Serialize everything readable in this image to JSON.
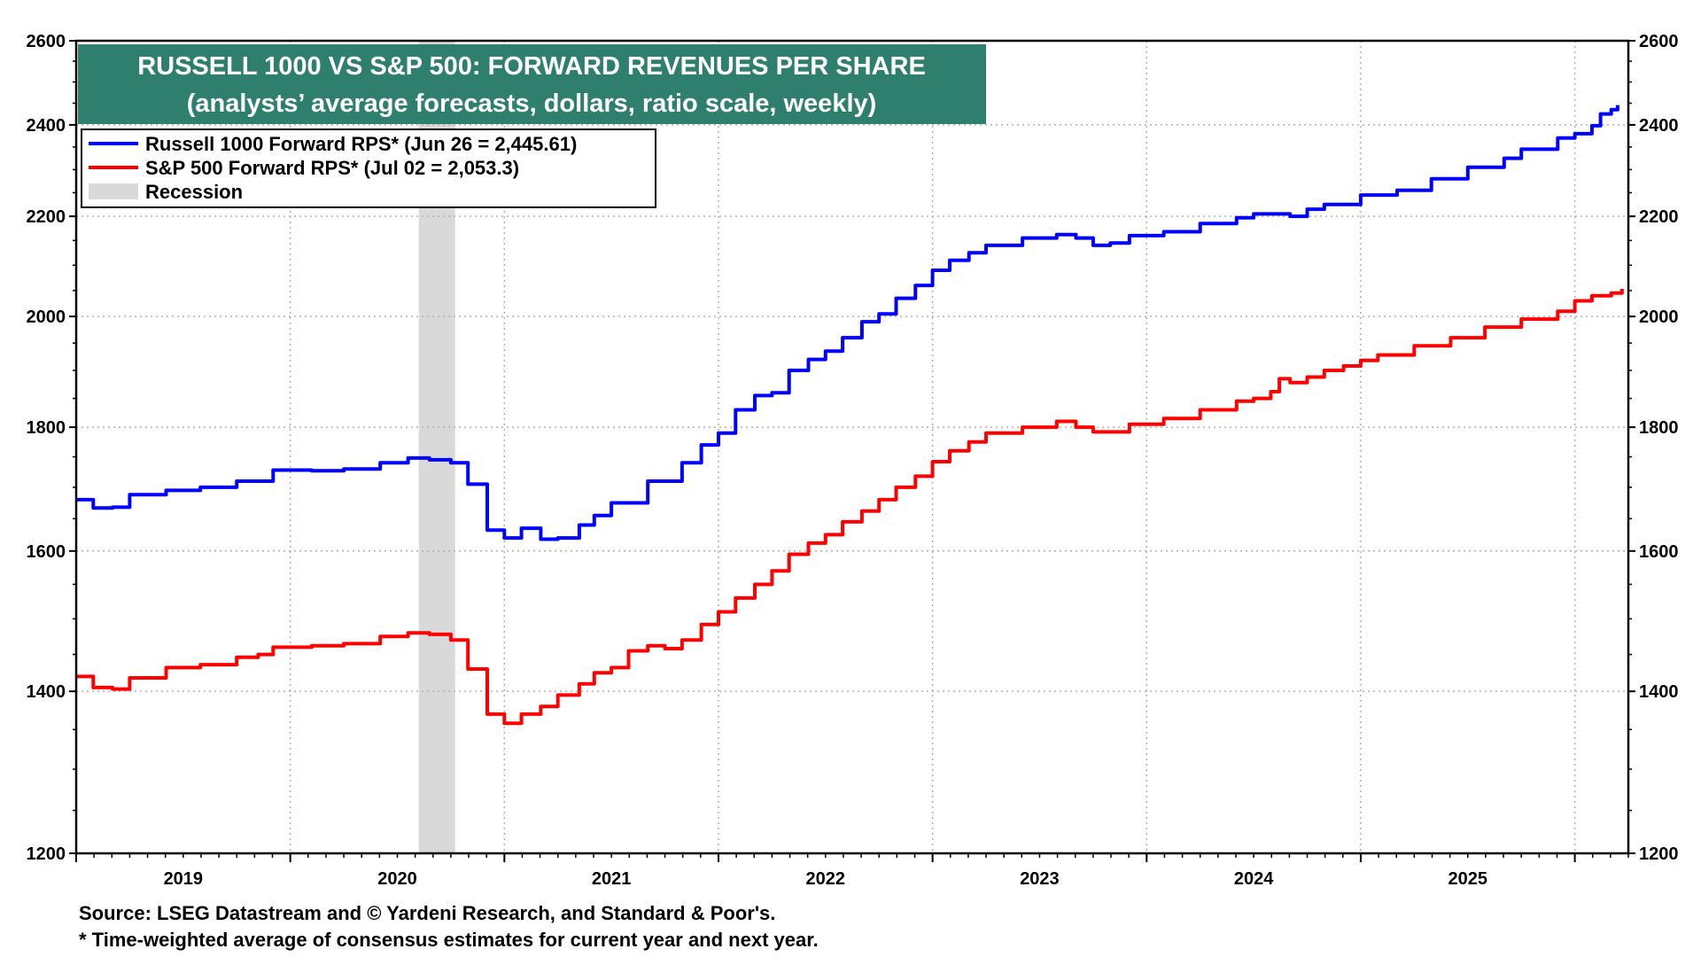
{
  "colors": {
    "title_bg": "#2f7f6f",
    "series_russell": "#0000ff",
    "series_sp": "#ff0000",
    "recession": "#d9d9d9",
    "grid": "#b0b0b0"
  },
  "footnotes": {
    "source": "Source: LSEG Datastream and © Yardeni Research, and Standard & Poor's.",
    "note": "* Time-weighted average of consensus estimates for current year and next year."
  },
  "chart_data": {
    "type": "line",
    "title": "RUSSELL 1000 VS S&P 500: FORWARD REVENUES PER SHARE",
    "subtitle": "(analysts’ average forecasts, dollars, ratio scale, weekly)",
    "xlabel": "",
    "ylabel": "",
    "yscale": "log",
    "ylim": [
      1200,
      2600
    ],
    "xlim": [
      2018.5,
      2025.75
    ],
    "y_ticks": [
      1200,
      1400,
      1600,
      1800,
      2000,
      2200,
      2400,
      2600
    ],
    "y_tick_labels": [
      "1200",
      "1400",
      "1600",
      "1800",
      "2000",
      "2200",
      "2400",
      "2600"
    ],
    "x_tick_labels": [
      "2019",
      "2020",
      "2021",
      "2022",
      "2023",
      "2024",
      "2025"
    ],
    "grid": true,
    "legend_position": "top-left",
    "legend": {
      "russell_label": "Russell 1000 Forward RPS* (Jun 26 = 2,445.61)",
      "sp_label": "S&P 500 Forward RPS* (Jul 02 = 2,053.3)",
      "recession_label": "Recession"
    },
    "recession": {
      "start": 2020.1,
      "end": 2020.27
    },
    "series": [
      {
        "name": "Russell 1000 Forward RPS*",
        "points": [
          [
            2018.5,
            1680
          ],
          [
            2018.58,
            1667
          ],
          [
            2018.67,
            1668
          ],
          [
            2018.75,
            1688
          ],
          [
            2018.92,
            1695
          ],
          [
            2019.08,
            1700
          ],
          [
            2019.25,
            1710
          ],
          [
            2019.35,
            1710
          ],
          [
            2019.42,
            1728
          ],
          [
            2019.6,
            1727
          ],
          [
            2019.75,
            1730
          ],
          [
            2019.92,
            1740
          ],
          [
            2020.05,
            1748
          ],
          [
            2020.15,
            1745
          ],
          [
            2020.25,
            1740
          ],
          [
            2020.33,
            1705
          ],
          [
            2020.42,
            1632
          ],
          [
            2020.5,
            1620
          ],
          [
            2020.58,
            1635
          ],
          [
            2020.67,
            1618
          ],
          [
            2020.75,
            1620
          ],
          [
            2020.85,
            1640
          ],
          [
            2020.92,
            1655
          ],
          [
            2021.0,
            1675
          ],
          [
            2021.17,
            1710
          ],
          [
            2021.33,
            1740
          ],
          [
            2021.42,
            1770
          ],
          [
            2021.5,
            1790
          ],
          [
            2021.58,
            1830
          ],
          [
            2021.67,
            1855
          ],
          [
            2021.75,
            1860
          ],
          [
            2021.83,
            1900
          ],
          [
            2021.92,
            1920
          ],
          [
            2022.0,
            1935
          ],
          [
            2022.08,
            1960
          ],
          [
            2022.17,
            1990
          ],
          [
            2022.25,
            2005
          ],
          [
            2022.33,
            2035
          ],
          [
            2022.42,
            2060
          ],
          [
            2022.5,
            2090
          ],
          [
            2022.58,
            2110
          ],
          [
            2022.67,
            2125
          ],
          [
            2022.75,
            2140
          ],
          [
            2022.92,
            2155
          ],
          [
            2023.08,
            2162
          ],
          [
            2023.17,
            2155
          ],
          [
            2023.25,
            2140
          ],
          [
            2023.33,
            2145
          ],
          [
            2023.42,
            2160
          ],
          [
            2023.58,
            2168
          ],
          [
            2023.75,
            2185
          ],
          [
            2023.92,
            2197
          ],
          [
            2024.0,
            2205
          ],
          [
            2024.17,
            2200
          ],
          [
            2024.25,
            2215
          ],
          [
            2024.33,
            2225
          ],
          [
            2024.5,
            2245
          ],
          [
            2024.67,
            2255
          ],
          [
            2024.83,
            2280
          ],
          [
            2025.0,
            2305
          ],
          [
            2025.17,
            2325
          ],
          [
            2025.25,
            2345
          ],
          [
            2025.42,
            2370
          ],
          [
            2025.5,
            2380
          ],
          [
            2025.58,
            2398
          ],
          [
            2025.62,
            2425
          ],
          [
            2025.67,
            2435
          ],
          [
            2025.7,
            2445.61
          ]
        ]
      },
      {
        "name": "S&P 500 Forward RPS*",
        "points": [
          [
            2018.5,
            1420
          ],
          [
            2018.58,
            1405
          ],
          [
            2018.67,
            1403
          ],
          [
            2018.75,
            1418
          ],
          [
            2018.92,
            1432
          ],
          [
            2019.08,
            1436
          ],
          [
            2019.25,
            1446
          ],
          [
            2019.35,
            1450
          ],
          [
            2019.42,
            1460
          ],
          [
            2019.6,
            1462
          ],
          [
            2019.75,
            1465
          ],
          [
            2019.92,
            1475
          ],
          [
            2020.05,
            1480
          ],
          [
            2020.15,
            1478
          ],
          [
            2020.25,
            1470
          ],
          [
            2020.33,
            1430
          ],
          [
            2020.42,
            1370
          ],
          [
            2020.5,
            1358
          ],
          [
            2020.58,
            1370
          ],
          [
            2020.67,
            1380
          ],
          [
            2020.75,
            1395
          ],
          [
            2020.85,
            1410
          ],
          [
            2020.92,
            1425
          ],
          [
            2021.0,
            1432
          ],
          [
            2021.08,
            1455
          ],
          [
            2021.17,
            1462
          ],
          [
            2021.25,
            1458
          ],
          [
            2021.33,
            1470
          ],
          [
            2021.42,
            1492
          ],
          [
            2021.5,
            1510
          ],
          [
            2021.58,
            1530
          ],
          [
            2021.67,
            1550
          ],
          [
            2021.75,
            1570
          ],
          [
            2021.83,
            1595
          ],
          [
            2021.92,
            1612
          ],
          [
            2022.0,
            1625
          ],
          [
            2022.08,
            1645
          ],
          [
            2022.17,
            1662
          ],
          [
            2022.25,
            1680
          ],
          [
            2022.33,
            1700
          ],
          [
            2022.42,
            1718
          ],
          [
            2022.5,
            1742
          ],
          [
            2022.58,
            1760
          ],
          [
            2022.67,
            1775
          ],
          [
            2022.75,
            1790
          ],
          [
            2022.92,
            1800
          ],
          [
            2023.08,
            1810
          ],
          [
            2023.17,
            1800
          ],
          [
            2023.25,
            1792
          ],
          [
            2023.42,
            1805
          ],
          [
            2023.58,
            1815
          ],
          [
            2023.75,
            1830
          ],
          [
            2023.92,
            1845
          ],
          [
            2024.0,
            1850
          ],
          [
            2024.08,
            1862
          ],
          [
            2024.12,
            1885
          ],
          [
            2024.17,
            1878
          ],
          [
            2024.25,
            1888
          ],
          [
            2024.33,
            1900
          ],
          [
            2024.42,
            1908
          ],
          [
            2024.5,
            1918
          ],
          [
            2024.58,
            1928
          ],
          [
            2024.75,
            1945
          ],
          [
            2024.92,
            1960
          ],
          [
            2025.08,
            1980
          ],
          [
            2025.25,
            1995
          ],
          [
            2025.42,
            2010
          ],
          [
            2025.5,
            2030
          ],
          [
            2025.58,
            2040
          ],
          [
            2025.67,
            2045
          ],
          [
            2025.72,
            2053.3
          ]
        ]
      }
    ]
  }
}
